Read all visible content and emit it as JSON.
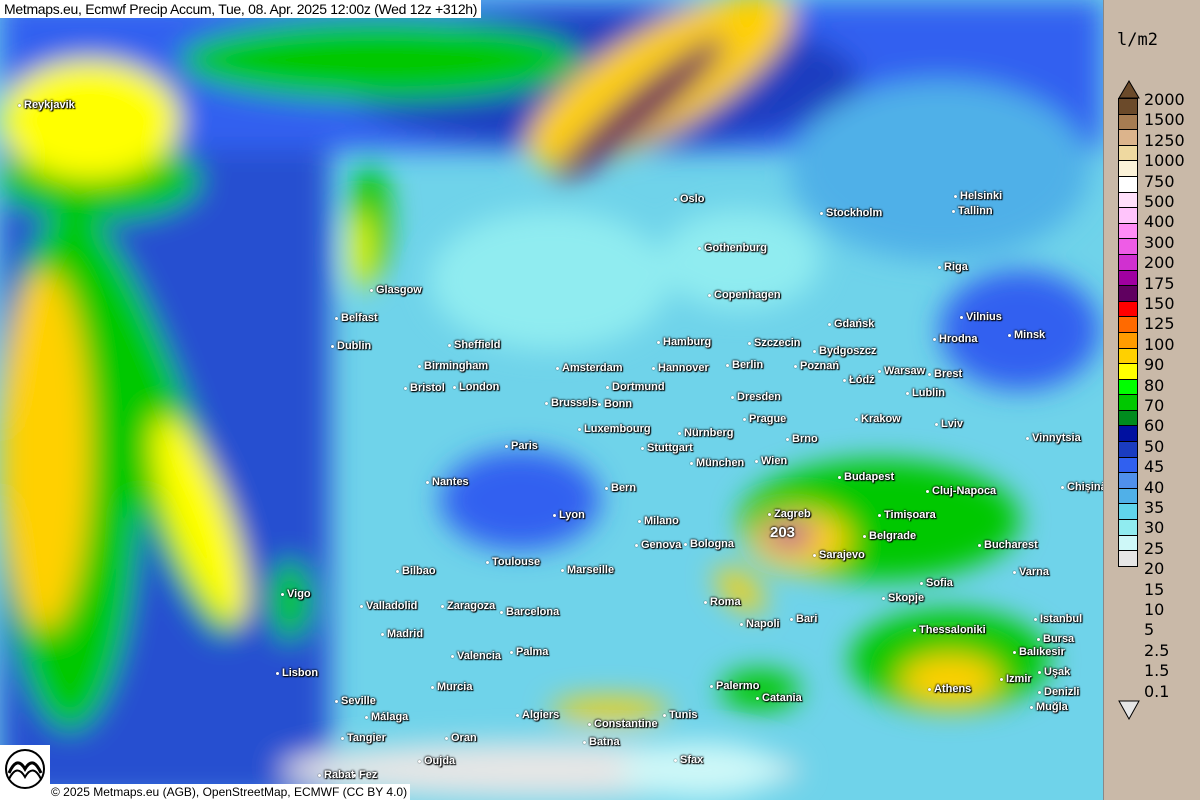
{
  "title": "Metmaps.eu, Ecmwf Precip Accum, Tue, 08. Apr. 2025 12:00z (Wed 12z +312h)",
  "copyright": "© 2025 Metmaps.eu (AGB), OpenStreetMap, ECMWF (CC BY 4.0)",
  "logo_text": "METMAPS",
  "max_value": "203",
  "legend": {
    "unit": "l/m2",
    "levels": [
      "2000",
      "1500",
      "1250",
      "1000",
      "750",
      "500",
      "400",
      "300",
      "200",
      "175",
      "150",
      "125",
      "100",
      "90",
      "80",
      "70",
      "60",
      "50",
      "45",
      "40",
      "35",
      "30",
      "25",
      "20",
      "15",
      "10",
      "5",
      "2.5",
      "1.5",
      "0.1"
    ],
    "colors": [
      "#6b4a2a",
      "#a67c52",
      "#dcb48c",
      "#efd9a0",
      "#fbf2d8",
      "#ffffff",
      "#ffe0fb",
      "#ffc4fb",
      "#ff8cf6",
      "#ee5ce6",
      "#d030d0",
      "#a000a0",
      "#600060",
      "#ff0000",
      "#ff6a00",
      "#ff9c00",
      "#ffd000",
      "#ffff00",
      "#00ff00",
      "#00c800",
      "#008c1e",
      "#0010a0",
      "#1a3cc0",
      "#3060f0",
      "#5090ec",
      "#50b0e8",
      "#60d4ec",
      "#90ecf0",
      "#cef8f8",
      "#e6e6e6"
    ]
  },
  "cities": [
    [
      "Reykjavik",
      18,
      106
    ],
    [
      "Oslo",
      674,
      200
    ],
    [
      "Stockholm",
      820,
      214
    ],
    [
      "Helsinki",
      954,
      197
    ],
    [
      "Tallinn",
      952,
      212
    ],
    [
      "Gothenburg",
      698,
      249
    ],
    [
      "Riga",
      938,
      268
    ],
    [
      "Glasgow",
      370,
      291
    ],
    [
      "Copenhagen",
      708,
      296
    ],
    [
      "Belfast",
      335,
      319
    ],
    [
      "Gdańsk",
      828,
      325
    ],
    [
      "Vilnius",
      960,
      318
    ],
    [
      "Dublin",
      331,
      347
    ],
    [
      "Sheffield",
      448,
      346
    ],
    [
      "Hamburg",
      657,
      343
    ],
    [
      "Szczecin",
      748,
      344
    ],
    [
      "Bydgoszcz",
      813,
      352
    ],
    [
      "Hrodna",
      933,
      340
    ],
    [
      "Minsk",
      1008,
      336
    ],
    [
      "Birmingham",
      418,
      367
    ],
    [
      "Amsterdam",
      556,
      369
    ],
    [
      "Hannover",
      652,
      369
    ],
    [
      "Berlin",
      726,
      366
    ],
    [
      "Poznań",
      794,
      367
    ],
    [
      "Warsaw",
      878,
      372
    ],
    [
      "Brest",
      928,
      375
    ],
    [
      "Łódź",
      843,
      381
    ],
    [
      "Bristol",
      404,
      389
    ],
    [
      "London",
      453,
      388
    ],
    [
      "Dortmund",
      606,
      388
    ],
    [
      "Lublin",
      906,
      394
    ],
    [
      "Brussels",
      545,
      404
    ],
    [
      "Bonn",
      598,
      405
    ],
    [
      "Dresden",
      731,
      398
    ],
    [
      "Prague",
      743,
      420
    ],
    [
      "Krakow",
      855,
      420
    ],
    [
      "Lviv",
      935,
      425
    ],
    [
      "Luxembourg",
      578,
      430
    ],
    [
      "Nürnberg",
      678,
      434
    ],
    [
      "Brno",
      786,
      440
    ],
    [
      "Vinnytsia",
      1026,
      439
    ],
    [
      "Paris",
      505,
      447
    ],
    [
      "Stuttgart",
      641,
      449
    ],
    [
      "München",
      690,
      464
    ],
    [
      "Wien",
      755,
      462
    ],
    [
      "Budapest",
      838,
      478
    ],
    [
      "Nantes",
      426,
      483
    ],
    [
      "Bern",
      605,
      489
    ],
    [
      "Cluj-Napoca",
      926,
      492
    ],
    [
      "Chișinău",
      1061,
      488
    ],
    [
      "Lyon",
      553,
      516
    ],
    [
      "Zagreb",
      768,
      515
    ],
    [
      "Timișoara",
      878,
      516
    ],
    [
      "Milano",
      638,
      522
    ],
    [
      "Belgrade",
      863,
      537
    ],
    [
      "Genova",
      635,
      546
    ],
    [
      "Bologna",
      684,
      545
    ],
    [
      "Bucharest",
      978,
      546
    ],
    [
      "Sarajevo",
      813,
      556
    ],
    [
      "Toulouse",
      486,
      563
    ],
    [
      "Bilbao",
      396,
      572
    ],
    [
      "Marseille",
      561,
      571
    ],
    [
      "Varna",
      1013,
      573
    ],
    [
      "Sofia",
      920,
      584
    ],
    [
      "Vigo",
      281,
      595
    ],
    [
      "Skopje",
      882,
      599
    ],
    [
      "Roma",
      704,
      603
    ],
    [
      "Valladolid",
      360,
      607
    ],
    [
      "Zaragoza",
      441,
      607
    ],
    [
      "Barcelona",
      500,
      613
    ],
    [
      "Istanbul",
      1034,
      620
    ],
    [
      "Napoli",
      740,
      625
    ],
    [
      "Bari",
      790,
      620
    ],
    [
      "Thessaloniki",
      913,
      631
    ],
    [
      "Madrid",
      381,
      635
    ],
    [
      "Bursa",
      1037,
      640
    ],
    [
      "Balıkesir",
      1013,
      653
    ],
    [
      "Valencia",
      451,
      657
    ],
    [
      "Palma",
      510,
      653
    ],
    [
      "Uşak",
      1038,
      673
    ],
    [
      "Lisbon",
      276,
      674
    ],
    [
      "Izmir",
      1000,
      680
    ],
    [
      "Palermo",
      710,
      687
    ],
    [
      "Catania",
      756,
      699
    ],
    [
      "Athens",
      928,
      690
    ],
    [
      "Denizli",
      1038,
      693
    ],
    [
      "Murcia",
      431,
      688
    ],
    [
      "Seville",
      335,
      702
    ],
    [
      "Muğla",
      1030,
      708
    ],
    [
      "Málaga",
      365,
      718
    ],
    [
      "Algiers",
      516,
      716
    ],
    [
      "Tunis",
      663,
      716
    ],
    [
      "Constantine",
      588,
      725
    ],
    [
      "Tangier",
      341,
      739
    ],
    [
      "Oran",
      445,
      739
    ],
    [
      "Batna",
      583,
      743
    ],
    [
      "Oujda",
      418,
      762
    ],
    [
      "Sfax",
      674,
      761
    ],
    [
      "Rabat",
      318,
      776
    ],
    [
      "Fez",
      353,
      776
    ]
  ]
}
